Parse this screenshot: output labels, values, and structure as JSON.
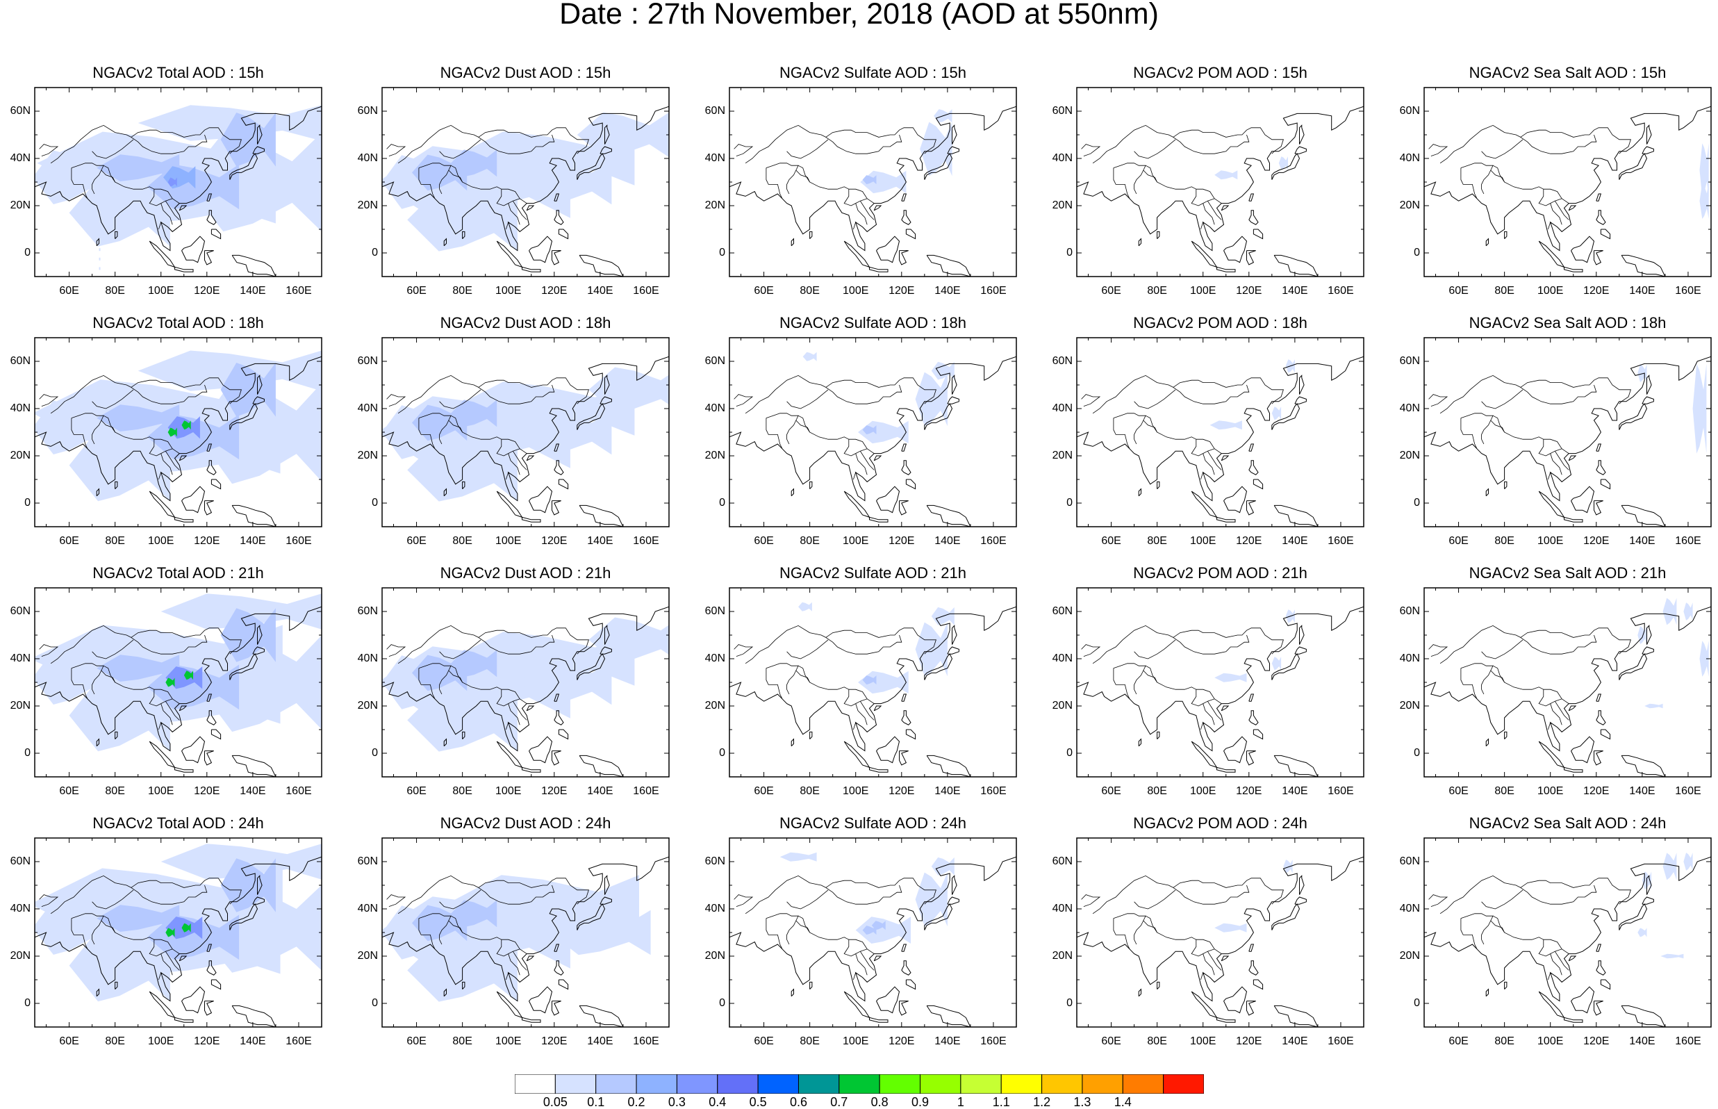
{
  "title": "Date : 27th November, 2018 (AOD at 550nm)",
  "panel_titles": [
    [
      "NGACv2 Total AOD : 15h",
      "NGACv2 Dust AOD : 15h",
      "NGACv2 Sulfate AOD : 15h",
      "NGACv2 POM AOD : 15h",
      "NGACv2 Sea Salt AOD : 15h"
    ],
    [
      "NGACv2 Total AOD : 18h",
      "NGACv2 Dust AOD : 18h",
      "NGACv2 Sulfate AOD : 18h",
      "NGACv2 POM AOD : 18h",
      "NGACv2 Sea Salt AOD : 18h"
    ],
    [
      "NGACv2 Total AOD : 21h",
      "NGACv2 Dust AOD : 21h",
      "NGACv2 Sulfate AOD : 21h",
      "NGACv2 POM AOD : 21h",
      "NGACv2 Sea Salt AOD : 21h"
    ],
    [
      "NGACv2 Total AOD : 24h",
      "NGACv2 Dust AOD : 24h",
      "NGACv2 Sulfate AOD : 24h",
      "NGACv2 POM AOD : 24h",
      "NGACv2 Sea Salt  AOD : 24h"
    ]
  ],
  "map": {
    "lon_range": [
      45,
      170
    ],
    "lat_range": [
      -10,
      70
    ],
    "x_ticks": [
      60,
      80,
      100,
      120,
      140,
      160
    ],
    "x_tick_labels": [
      "60E",
      "80E",
      "100E",
      "120E",
      "140E",
      "160E"
    ],
    "y_ticks": [
      0,
      20,
      40,
      60
    ],
    "y_tick_labels": [
      "0",
      "20N",
      "40N",
      "60N"
    ]
  },
  "colorbar": {
    "labels": [
      "0.05",
      "0.1",
      "0.2",
      "0.3",
      "0.4",
      "0.5",
      "0.6",
      "0.7",
      "0.8",
      "0.9",
      "1",
      "1.1",
      "1.2",
      "1.3",
      "1.4"
    ],
    "colors": [
      "#ffffff",
      "#d6e2ff",
      "#b5c9ff",
      "#8eb2ff",
      "#7f96ff",
      "#6370f8",
      "#0063ff",
      "#009696",
      "#00c633",
      "#63ff00",
      "#96ff00",
      "#c6ff33",
      "#ffff00",
      "#ffc600",
      "#ffa000",
      "#ff7c00",
      "#ff1900"
    ]
  }
}
